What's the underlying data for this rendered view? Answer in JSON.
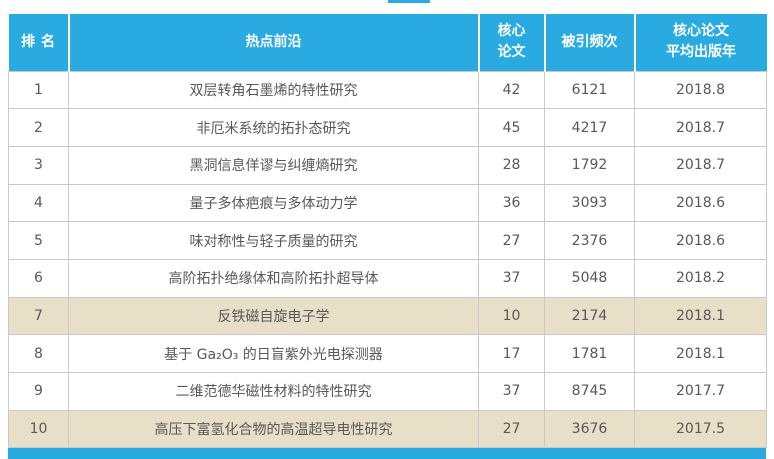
{
  "colors": {
    "accent": "#29abe2",
    "highlight_bg": "#e7dfc8",
    "row_text": "#595757",
    "grid_border": "#c9c9c9"
  },
  "chart_data": {
    "type": "table",
    "columns": [
      "排名",
      "热点前沿",
      "核心\n论文",
      "被引频次",
      "核心论文\n平均出版年"
    ],
    "highlighted_ranks": [
      7,
      10
    ],
    "rows": [
      {
        "rank": "1",
        "topic": "双层转角石墨烯的特性研究",
        "core_papers": "42",
        "citations": "6121",
        "avg_year": "2018.8",
        "highlight": false
      },
      {
        "rank": "2",
        "topic": "非厄米系统的拓扑态研究",
        "core_papers": "45",
        "citations": "4217",
        "avg_year": "2018.7",
        "highlight": false
      },
      {
        "rank": "3",
        "topic": "黑洞信息佯谬与纠缠熵研究",
        "core_papers": "28",
        "citations": "1792",
        "avg_year": "2018.7",
        "highlight": false
      },
      {
        "rank": "4",
        "topic": "量子多体疤痕与多体动力学",
        "core_papers": "36",
        "citations": "3093",
        "avg_year": "2018.6",
        "highlight": false
      },
      {
        "rank": "5",
        "topic": "味对称性与轻子质量的研究",
        "core_papers": "27",
        "citations": "2376",
        "avg_year": "2018.6",
        "highlight": false
      },
      {
        "rank": "6",
        "topic": "高阶拓扑绝缘体和高阶拓扑超导体",
        "core_papers": "37",
        "citations": "5048",
        "avg_year": "2018.2",
        "highlight": false
      },
      {
        "rank": "7",
        "topic": "反铁磁自旋电子学",
        "core_papers": "10",
        "citations": "2174",
        "avg_year": "2018.1",
        "highlight": true
      },
      {
        "rank": "8",
        "topic": "基于 Ga₂O₃ 的日盲紫外光电探测器",
        "core_papers": "17",
        "citations": "1781",
        "avg_year": "2018.1",
        "highlight": false
      },
      {
        "rank": "9",
        "topic": "二维范德华磁性材料的特性研究",
        "core_papers": "37",
        "citations": "8745",
        "avg_year": "2017.7",
        "highlight": false
      },
      {
        "rank": "10",
        "topic": "高压下富氢化合物的高温超导电性研究",
        "core_papers": "27",
        "citations": "3676",
        "avg_year": "2017.5",
        "highlight": true
      }
    ]
  }
}
